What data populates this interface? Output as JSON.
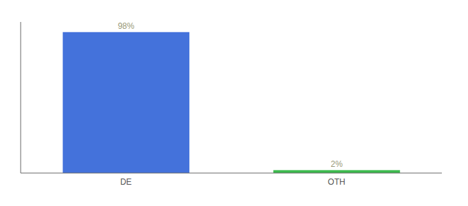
{
  "chart_data": {
    "type": "bar",
    "categories": [
      "DE",
      "OTH"
    ],
    "values": [
      98,
      2
    ],
    "value_labels": [
      "98%",
      "2%"
    ],
    "colors": [
      "#4472db",
      "#3dba4e"
    ],
    "ylim": [
      0,
      105
    ],
    "data_labels": true,
    "tick_labels": "x"
  }
}
